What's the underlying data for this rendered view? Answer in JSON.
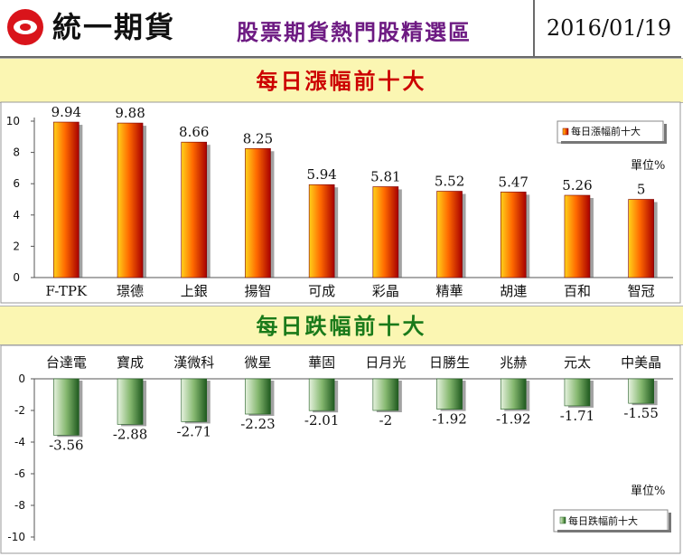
{
  "header": {
    "logo_text": "統一期貨",
    "title": "股票期貨熱門股精選區",
    "date": "2016/01/19"
  },
  "colors": {
    "accent_red": "#cc0000",
    "accent_green": "#1a7a1a",
    "band_bg": "#fbf6b2",
    "title_purple": "#6d1a82"
  },
  "sections": {
    "up_title": "每日漲幅前十大",
    "down_title": "每日跌幅前十大"
  },
  "chart_data": [
    {
      "type": "bar",
      "title": "每日漲幅前十大",
      "categories": [
        "F-TPK",
        "璟德",
        "上銀",
        "揚智",
        "可成",
        "彩晶",
        "精華",
        "胡連",
        "百和",
        "智冠"
      ],
      "series": [
        {
          "name": "每日漲幅前十大",
          "values": [
            9.94,
            9.88,
            8.66,
            8.25,
            5.94,
            5.81,
            5.52,
            5.47,
            5.26,
            5
          ]
        }
      ],
      "ylim": [
        0,
        10
      ],
      "yticks": [
        0,
        2,
        4,
        6,
        8,
        10
      ],
      "unit_label": "單位%",
      "legend": "top-right"
    },
    {
      "type": "bar",
      "title": "每日跌幅前十大",
      "categories": [
        "台達電",
        "寶成",
        "漢微科",
        "微星",
        "華固",
        "日月光",
        "日勝生",
        "兆赫",
        "元太",
        "中美晶"
      ],
      "series": [
        {
          "name": "每日跌幅前十大",
          "values": [
            -3.56,
            -2.88,
            -2.71,
            -2.23,
            -2.01,
            -2,
            -1.92,
            -1.92,
            -1.71,
            -1.55
          ]
        }
      ],
      "ylim": [
        -10,
        0
      ],
      "yticks": [
        0,
        -2,
        -4,
        -6,
        -8,
        -10
      ],
      "unit_label": "單位%",
      "legend": "bottom-right"
    }
  ]
}
